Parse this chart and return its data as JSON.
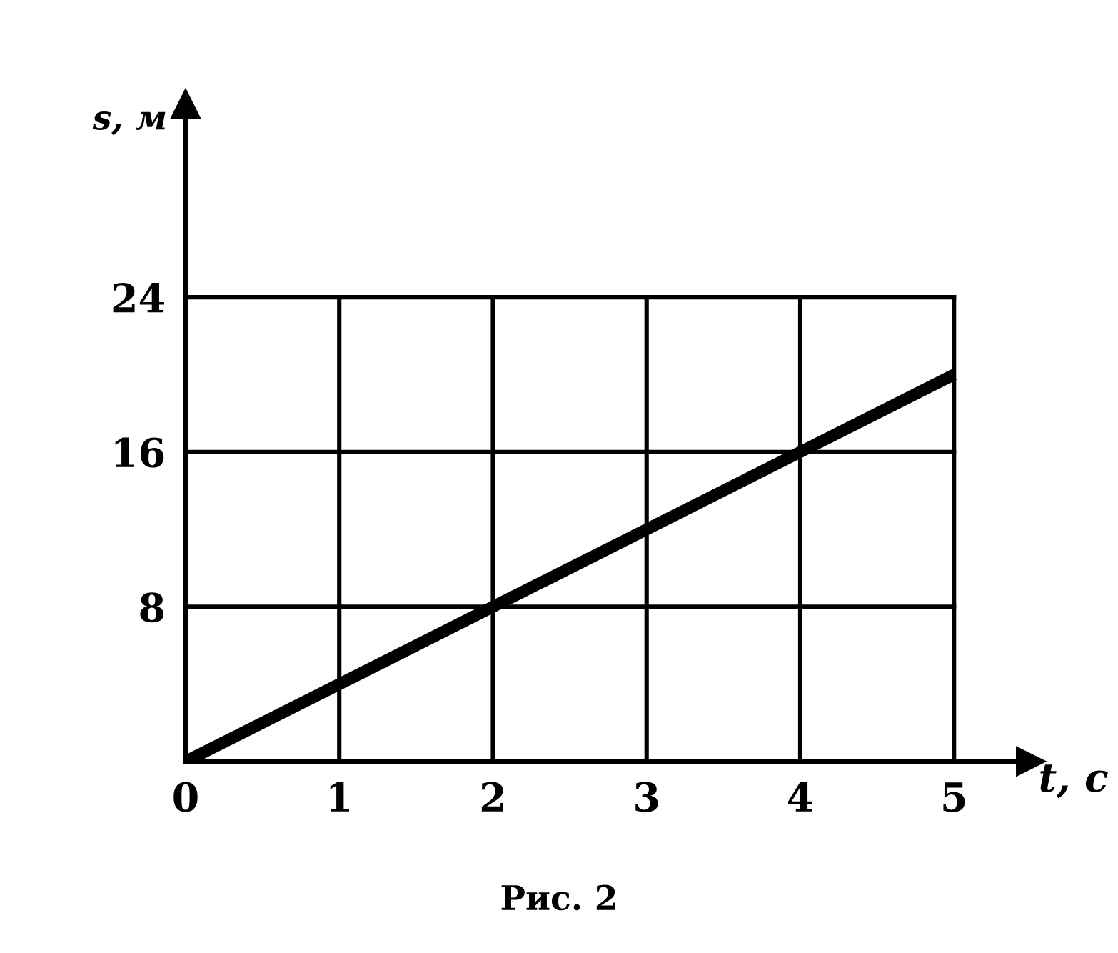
{
  "chart_data": {
    "type": "line",
    "xlabel": "t, с",
    "ylabel": "s, м",
    "x": [
      0,
      5
    ],
    "values": [
      0,
      20
    ],
    "color": "#000000",
    "xlim": [
      0,
      5.5
    ],
    "ylim": [
      0,
      34
    ],
    "xticks": [
      0,
      1,
      2,
      3,
      4,
      5
    ],
    "yticks": [
      {
        "value": 0,
        "label": null
      },
      8,
      16,
      24
    ],
    "grid": true,
    "marker": "none",
    "line_style": "solid",
    "annotations": [
      "Рис. 2"
    ]
  }
}
